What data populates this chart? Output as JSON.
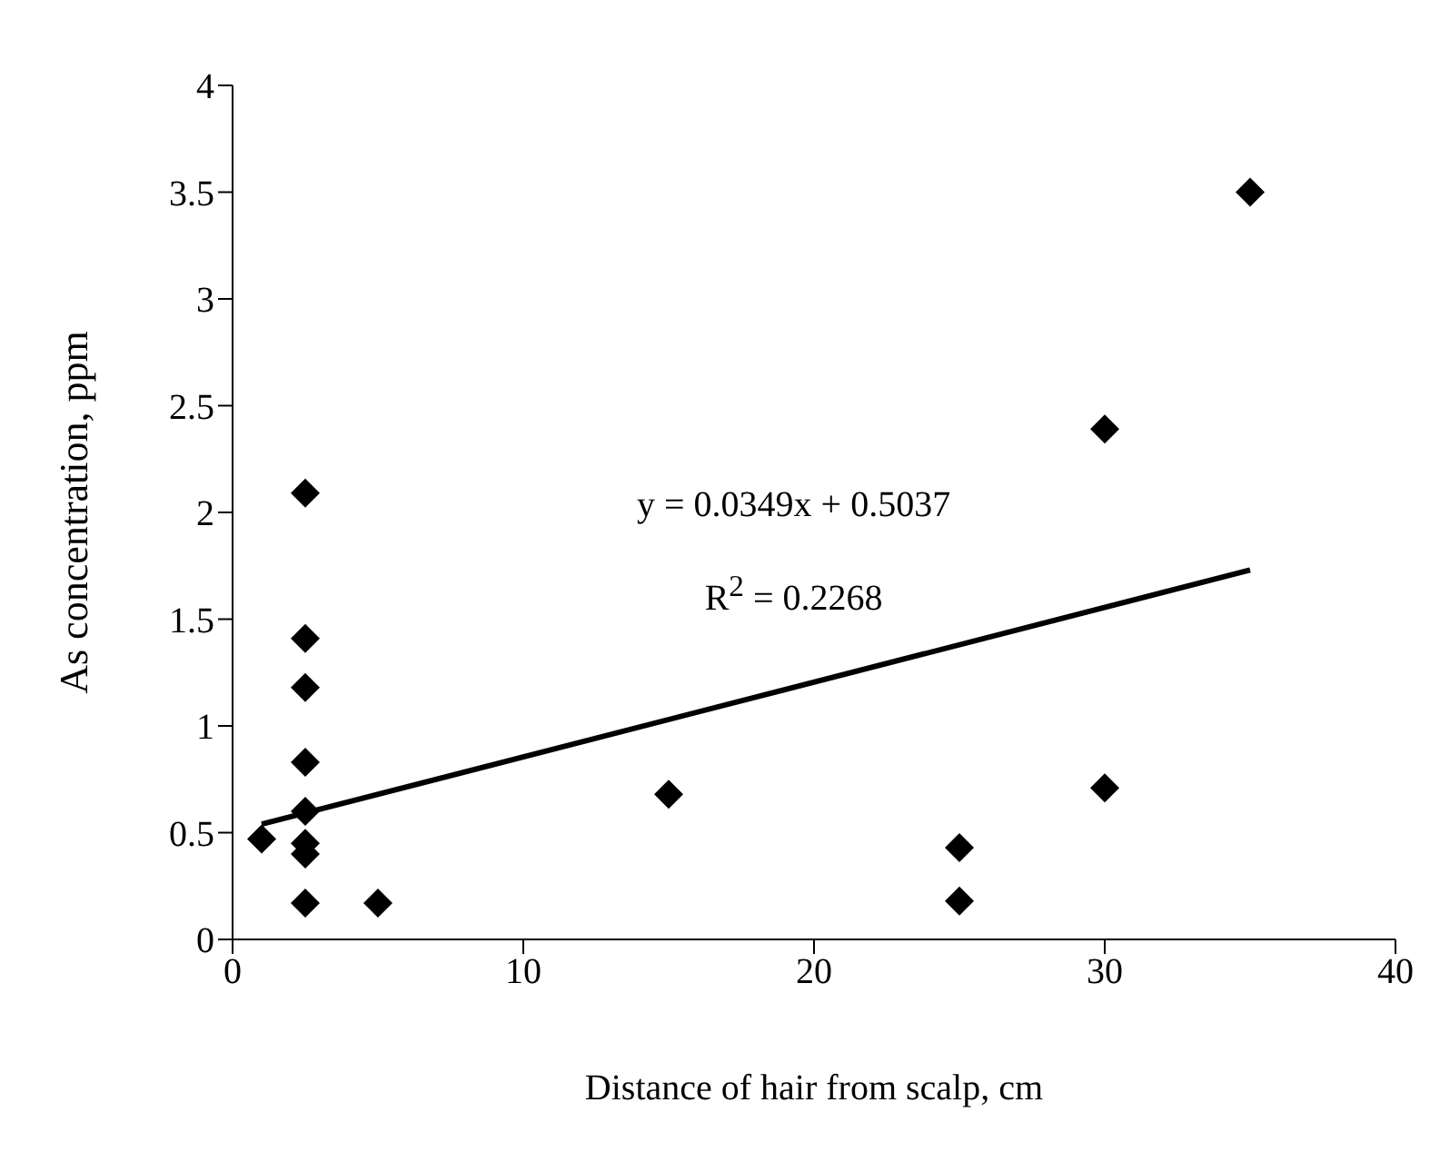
{
  "chart_data": {
    "type": "scatter",
    "xlabel": "Distance of hair from scalp, cm",
    "ylabel": "As concentration, ppm",
    "xlim": [
      0,
      40
    ],
    "xticks": [
      0,
      10,
      20,
      30,
      40
    ],
    "ylim": [
      0,
      4
    ],
    "yticks": [
      0,
      0.5,
      1,
      1.5,
      2,
      2.5,
      3,
      3.5,
      4
    ],
    "marker": "diamond",
    "grid": false,
    "legend": false,
    "series": [
      {
        "color": "#000000",
        "x": [
          1,
          2.5,
          2.5,
          2.5,
          2.5,
          2.5,
          2.5,
          2.5,
          2.5,
          5,
          15,
          25,
          25,
          30,
          30,
          35
        ],
        "values": [
          0.47,
          2.09,
          1.41,
          1.18,
          0.83,
          0.6,
          0.45,
          0.4,
          0.17,
          0.17,
          0.68,
          0.43,
          0.18,
          2.39,
          0.71,
          3.5
        ]
      },
      {
        "type": "line",
        "color": "#000000",
        "marker": "none",
        "x": [
          1,
          35
        ],
        "values": [
          0.54,
          1.73
        ]
      }
    ],
    "annotations": [
      "y = 0.0349x + 0.5037",
      "R$^{2}$ = 0.2268"
    ]
  }
}
